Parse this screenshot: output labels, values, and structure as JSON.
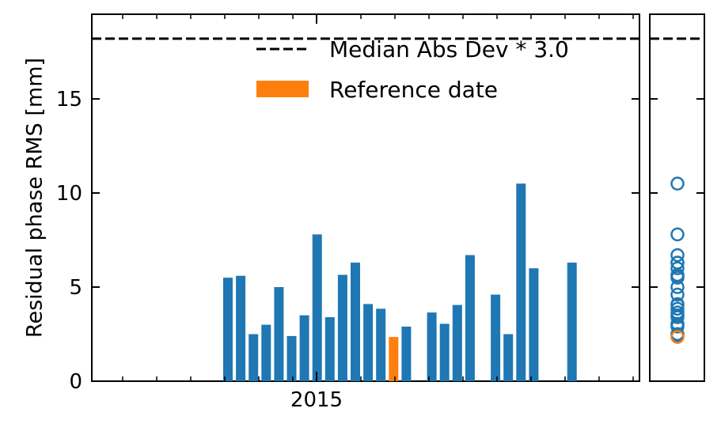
{
  "chart_data": [
    {
      "type": "bar",
      "ylabel": "Residual phase RMS [mm]",
      "xlabel": "",
      "x_tick_labels": [
        "2015"
      ],
      "y_ticks": [
        0,
        5,
        10,
        15
      ],
      "y_tick_labels": [
        "0",
        "5",
        "10",
        "15"
      ],
      "ylim": [
        0,
        19.5
      ],
      "legend": {
        "placement": "top-right",
        "entries": [
          {
            "label": "Median Abs Dev * 3.0",
            "style": "dashed-line",
            "color": "#000000"
          },
          {
            "label": "Reference date",
            "style": "patch",
            "color": "#ff7f0e"
          }
        ]
      },
      "threshold": 18.2,
      "series": [
        {
          "values": [
            5.5,
            5.6,
            2.5,
            3.0,
            5.0,
            2.4,
            3.5,
            7.8,
            3.4,
            5.65,
            6.3,
            4.1,
            3.85,
            2.35,
            2.9,
            3.65,
            3.05,
            4.05,
            6.7,
            4.6,
            2.5,
            10.5,
            6.0,
            6.3
          ],
          "reference_index": 13,
          "slots": [
            0,
            1,
            2,
            3,
            4,
            5,
            6,
            7,
            8,
            9,
            10,
            11,
            12,
            13,
            14,
            16,
            17,
            18,
            19,
            21,
            22,
            23,
            24,
            27
          ]
        }
      ],
      "colors": {
        "bar": "#1f77b4",
        "reference": "#ff7f0e",
        "threshold": "#000000"
      }
    },
    {
      "type": "scatter",
      "ylim": [
        0,
        19.5
      ],
      "values": [
        5.5,
        5.6,
        2.5,
        3.0,
        5.0,
        2.4,
        3.5,
        7.8,
        3.4,
        5.65,
        6.3,
        4.1,
        3.85,
        2.35,
        2.9,
        3.65,
        3.05,
        4.05,
        6.7,
        4.6,
        2.5,
        10.5,
        6.0,
        6.3
      ],
      "reference_index": 13,
      "marker": "open-circle",
      "colors": {
        "point": "#1f77b4",
        "reference": "#ff7f0e"
      }
    }
  ]
}
